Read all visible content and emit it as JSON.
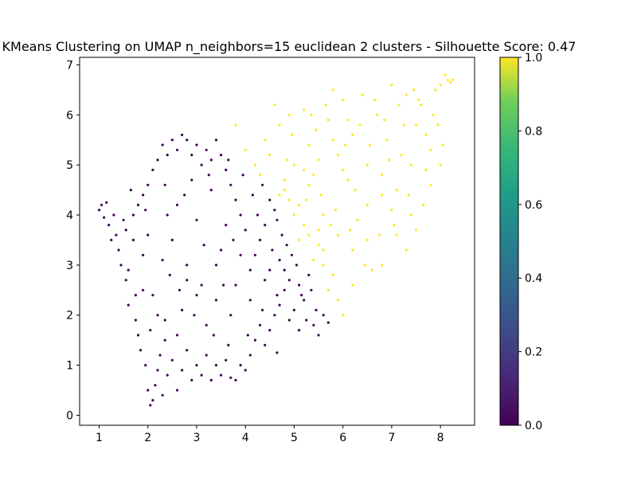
{
  "chart_data": {
    "type": "scatter",
    "title": "KMeans Clustering on UMAP n_neighbors=15 euclidean 2 clusters - Silhouette Score: 0.47",
    "xlabel": "",
    "ylabel": "",
    "xlim": [
      0.6,
      8.7
    ],
    "ylim": [
      -0.2,
      7.15
    ],
    "x_ticks": [
      1,
      2,
      3,
      4,
      5,
      6,
      7,
      8
    ],
    "y_ticks": [
      0,
      1,
      2,
      3,
      4,
      5,
      6,
      7
    ],
    "grid": false,
    "colorbar": {
      "colormap": "viridis",
      "range": [
        0.0,
        1.0
      ],
      "ticks": [
        "0.0",
        "0.2",
        "0.4",
        "0.6",
        "0.8",
        "1.0"
      ]
    },
    "series": [
      {
        "cluster": 0,
        "color": "#440154",
        "points": [
          [
            1.0,
            4.1
          ],
          [
            1.05,
            4.2
          ],
          [
            1.1,
            3.95
          ],
          [
            1.15,
            4.25
          ],
          [
            1.2,
            3.8
          ],
          [
            1.3,
            4.0
          ],
          [
            1.35,
            3.6
          ],
          [
            1.4,
            3.3
          ],
          [
            1.45,
            3.0
          ],
          [
            1.5,
            3.9
          ],
          [
            1.55,
            2.7
          ],
          [
            1.6,
            2.2
          ],
          [
            1.65,
            4.5
          ],
          [
            1.7,
            3.5
          ],
          [
            1.75,
            1.9
          ],
          [
            1.8,
            1.6
          ],
          [
            1.85,
            1.3
          ],
          [
            1.9,
            2.5
          ],
          [
            1.95,
            1.0
          ],
          [
            2.0,
            0.5
          ],
          [
            2.05,
            0.2
          ],
          [
            2.1,
            0.3
          ],
          [
            2.15,
            0.6
          ],
          [
            2.2,
            0.9
          ],
          [
            2.25,
            1.2
          ],
          [
            2.3,
            0.4
          ],
          [
            2.35,
            1.5
          ],
          [
            2.4,
            0.8
          ],
          [
            2.5,
            1.1
          ],
          [
            2.6,
            0.5
          ],
          [
            2.7,
            0.9
          ],
          [
            2.8,
            1.3
          ],
          [
            2.9,
            0.7
          ],
          [
            3.0,
            1.0
          ],
          [
            3.1,
            0.8
          ],
          [
            3.2,
            1.2
          ],
          [
            3.3,
            0.7
          ],
          [
            3.4,
            1.0
          ],
          [
            3.5,
            0.8
          ],
          [
            3.6,
            1.1
          ],
          [
            3.7,
            0.75
          ],
          [
            3.8,
            0.7
          ],
          [
            3.9,
            1.0
          ],
          [
            4.0,
            0.9
          ],
          [
            4.1,
            1.2
          ],
          [
            4.2,
            1.5
          ],
          [
            4.3,
            1.8
          ],
          [
            4.4,
            1.4
          ],
          [
            4.5,
            1.7
          ],
          [
            4.6,
            2.0
          ],
          [
            4.65,
            1.25
          ],
          [
            4.7,
            2.2
          ],
          [
            4.8,
            2.5
          ],
          [
            4.9,
            1.9
          ],
          [
            5.0,
            2.1
          ],
          [
            5.1,
            2.6
          ],
          [
            5.2,
            2.3
          ],
          [
            5.3,
            2.8
          ],
          [
            5.4,
            1.8
          ],
          [
            5.5,
            1.6
          ],
          [
            5.6,
            2.0
          ],
          [
            5.7,
            1.85
          ],
          [
            5.05,
            3.0
          ],
          [
            4.95,
            3.2
          ],
          [
            4.85,
            3.4
          ],
          [
            4.75,
            3.6
          ],
          [
            4.65,
            3.9
          ],
          [
            4.6,
            4.1
          ],
          [
            4.5,
            4.3
          ],
          [
            4.4,
            3.8
          ],
          [
            4.3,
            3.5
          ],
          [
            4.2,
            3.2
          ],
          [
            4.1,
            2.9
          ],
          [
            4.0,
            3.7
          ],
          [
            3.9,
            4.0
          ],
          [
            3.8,
            4.3
          ],
          [
            3.7,
            4.6
          ],
          [
            3.6,
            4.9
          ],
          [
            3.5,
            5.2
          ],
          [
            3.4,
            5.5
          ],
          [
            3.3,
            5.1
          ],
          [
            3.2,
            5.3
          ],
          [
            3.1,
            5.0
          ],
          [
            3.0,
            5.4
          ],
          [
            2.9,
            5.2
          ],
          [
            2.8,
            5.5
          ],
          [
            2.7,
            5.6
          ],
          [
            2.6,
            5.3
          ],
          [
            2.5,
            5.5
          ],
          [
            2.4,
            5.2
          ],
          [
            2.3,
            5.4
          ],
          [
            2.2,
            5.1
          ],
          [
            2.1,
            4.9
          ],
          [
            2.0,
            4.6
          ],
          [
            1.9,
            4.4
          ],
          [
            1.8,
            4.2
          ],
          [
            1.7,
            4.0
          ],
          [
            2.5,
            3.5
          ],
          [
            2.8,
            3.0
          ],
          [
            3.1,
            2.6
          ],
          [
            3.4,
            2.3
          ],
          [
            3.7,
            2.0
          ],
          [
            3.5,
            3.3
          ],
          [
            3.0,
            3.9
          ],
          [
            2.6,
            4.2
          ],
          [
            2.3,
            3.1
          ],
          [
            2.1,
            2.4
          ],
          [
            2.7,
            2.1
          ],
          [
            3.2,
            1.8
          ],
          [
            3.8,
            2.6
          ],
          [
            4.1,
            2.3
          ],
          [
            4.4,
            2.7
          ],
          [
            3.6,
            3.8
          ],
          [
            3.3,
            4.5
          ],
          [
            2.9,
            4.7
          ],
          [
            2.4,
            4.0
          ],
          [
            1.9,
            3.2
          ],
          [
            2.2,
            2.0
          ],
          [
            2.6,
            1.6
          ],
          [
            3.0,
            2.4
          ],
          [
            4.5,
            2.9
          ],
          [
            4.7,
            3.1
          ],
          [
            4.9,
            2.7
          ],
          [
            3.9,
            3.2
          ],
          [
            3.4,
            3.0
          ],
          [
            2.8,
            2.7
          ],
          [
            2.0,
            3.6
          ],
          [
            1.6,
            2.9
          ],
          [
            1.75,
            2.4
          ],
          [
            2.45,
            2.8
          ],
          [
            3.15,
            3.4
          ],
          [
            3.75,
            3.5
          ],
          [
            4.25,
            4.0
          ],
          [
            4.55,
            3.3
          ],
          [
            4.8,
            2.9
          ],
          [
            5.15,
            2.4
          ],
          [
            5.35,
            2.5
          ],
          [
            5.45,
            2.1
          ],
          [
            5.25,
            1.9
          ],
          [
            5.1,
            1.7
          ],
          [
            4.35,
            4.6
          ],
          [
            4.15,
            4.4
          ],
          [
            3.95,
            4.8
          ],
          [
            3.65,
            5.1
          ],
          [
            3.25,
            4.8
          ],
          [
            2.75,
            4.4
          ],
          [
            2.35,
            4.6
          ],
          [
            1.95,
            4.1
          ],
          [
            1.55,
            3.7
          ],
          [
            1.25,
            3.5
          ],
          [
            2.05,
            1.7
          ],
          [
            2.35,
            1.9
          ],
          [
            2.65,
            2.5
          ],
          [
            2.95,
            2.0
          ],
          [
            3.35,
            1.6
          ],
          [
            3.65,
            1.4
          ],
          [
            4.05,
            1.6
          ],
          [
            4.35,
            2.1
          ],
          [
            4.65,
            2.4
          ],
          [
            3.55,
            2.6
          ]
        ]
      },
      {
        "cluster": 1,
        "color": "#fde725",
        "points": [
          [
            3.8,
            5.8
          ],
          [
            4.0,
            5.3
          ],
          [
            4.2,
            5.0
          ],
          [
            4.3,
            4.8
          ],
          [
            4.4,
            5.5
          ],
          [
            4.5,
            5.2
          ],
          [
            4.6,
            6.2
          ],
          [
            4.7,
            5.8
          ],
          [
            4.8,
            4.5
          ],
          [
            4.9,
            6.0
          ],
          [
            5.0,
            5.0
          ],
          [
            5.1,
            4.2
          ],
          [
            5.2,
            6.1
          ],
          [
            5.3,
            5.4
          ],
          [
            5.4,
            4.8
          ],
          [
            5.5,
            3.7
          ],
          [
            5.6,
            3.3
          ],
          [
            5.7,
            5.9
          ],
          [
            5.8,
            6.5
          ],
          [
            5.9,
            5.2
          ],
          [
            6.0,
            6.3
          ],
          [
            6.1,
            4.7
          ],
          [
            6.2,
            5.6
          ],
          [
            6.3,
            3.9
          ],
          [
            6.4,
            6.4
          ],
          [
            6.5,
            5.0
          ],
          [
            6.6,
            2.9
          ],
          [
            6.7,
            6.0
          ],
          [
            6.8,
            4.4
          ],
          [
            6.9,
            5.5
          ],
          [
            7.0,
            6.6
          ],
          [
            7.1,
            3.6
          ],
          [
            7.2,
            5.2
          ],
          [
            7.3,
            6.4
          ],
          [
            7.4,
            4.0
          ],
          [
            7.5,
            5.8
          ],
          [
            7.6,
            6.2
          ],
          [
            7.7,
            4.9
          ],
          [
            7.8,
            5.3
          ],
          [
            7.9,
            6.5
          ],
          [
            8.0,
            6.6
          ],
          [
            8.1,
            6.8
          ],
          [
            8.15,
            6.7
          ],
          [
            8.2,
            6.65
          ],
          [
            8.0,
            5.0
          ],
          [
            7.8,
            4.6
          ],
          [
            7.5,
            3.7
          ],
          [
            7.3,
            3.3
          ],
          [
            7.0,
            4.1
          ],
          [
            6.8,
            3.0
          ],
          [
            6.5,
            3.5
          ],
          [
            6.2,
            2.6
          ],
          [
            6.0,
            2.0
          ],
          [
            5.9,
            2.3
          ],
          [
            5.8,
            2.8
          ],
          [
            5.7,
            2.5
          ],
          [
            5.6,
            3.0
          ],
          [
            5.5,
            3.4
          ],
          [
            5.4,
            3.1
          ],
          [
            5.3,
            3.6
          ],
          [
            5.2,
            3.8
          ],
          [
            5.1,
            3.5
          ],
          [
            5.0,
            4.0
          ],
          [
            4.9,
            4.3
          ],
          [
            4.8,
            4.7
          ],
          [
            4.7,
            4.4
          ],
          [
            5.3,
            4.6
          ],
          [
            5.6,
            4.0
          ],
          [
            5.9,
            3.6
          ],
          [
            6.2,
            3.3
          ],
          [
            6.5,
            4.2
          ],
          [
            6.8,
            4.8
          ],
          [
            7.1,
            4.5
          ],
          [
            7.4,
            5.0
          ],
          [
            7.7,
            5.6
          ],
          [
            6.1,
            5.9
          ],
          [
            5.8,
            5.5
          ],
          [
            5.5,
            5.1
          ],
          [
            5.2,
            4.9
          ],
          [
            4.95,
            5.6
          ],
          [
            5.35,
            6.0
          ],
          [
            5.65,
            6.2
          ],
          [
            6.05,
            5.4
          ],
          [
            6.35,
            5.8
          ],
          [
            6.65,
            6.3
          ],
          [
            6.95,
            5.1
          ],
          [
            7.25,
            5.8
          ],
          [
            7.55,
            6.3
          ],
          [
            7.85,
            6.0
          ],
          [
            8.05,
            5.4
          ],
          [
            7.65,
            4.2
          ],
          [
            7.35,
            4.4
          ],
          [
            7.05,
            3.8
          ],
          [
            6.75,
            3.6
          ],
          [
            6.45,
            3.0
          ],
          [
            6.15,
            3.7
          ],
          [
            5.85,
            4.1
          ],
          [
            5.55,
            4.4
          ],
          [
            5.25,
            4.3
          ],
          [
            4.85,
            5.1
          ],
          [
            5.75,
            3.8
          ],
          [
            6.25,
            4.5
          ],
          [
            6.55,
            5.4
          ],
          [
            6.85,
            5.9
          ],
          [
            7.15,
            6.2
          ],
          [
            7.45,
            6.5
          ],
          [
            7.95,
            5.8
          ],
          [
            8.25,
            6.7
          ],
          [
            6.0,
            4.9
          ],
          [
            5.45,
            5.7
          ]
        ]
      }
    ]
  }
}
